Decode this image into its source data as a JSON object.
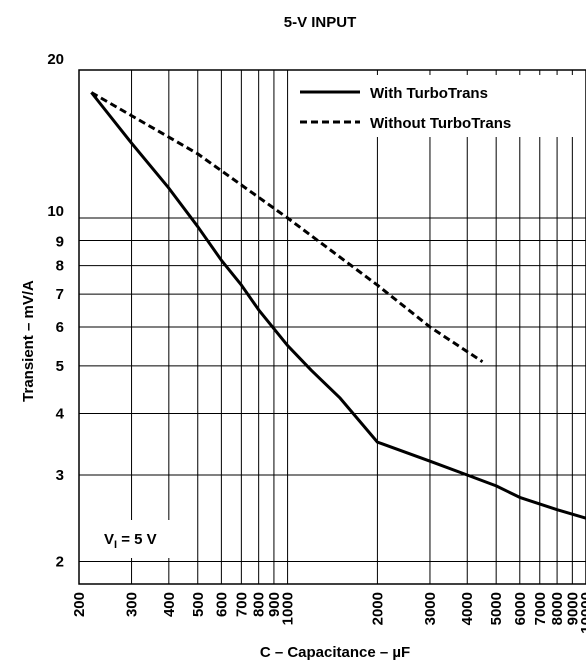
{
  "chart_data": {
    "type": "line",
    "title": "5-V INPUT",
    "xlabel": "C – Capacitance – µF",
    "ylabel": "Transient – mV/A",
    "x_scale": "log",
    "y_scale": "log",
    "xlim": [
      200,
      10000
    ],
    "ylim": [
      1.8,
      20
    ],
    "grid": true,
    "legend_position": "top-right",
    "x_ticks": [
      200,
      300,
      400,
      500,
      600,
      700,
      800,
      900,
      1000,
      2000,
      3000,
      4000,
      5000,
      6000,
      7000,
      8000,
      9000,
      10000
    ],
    "x_tick_labels": [
      "200",
      "300",
      "400",
      "500",
      "600",
      "700",
      "800",
      "900",
      "1000",
      "2000",
      "3000",
      "4000",
      "5000",
      "6000",
      "7000",
      "8000",
      "9000",
      "10000"
    ],
    "y_ticks": [
      2,
      3,
      4,
      5,
      6,
      7,
      8,
      9,
      10,
      20
    ],
    "y_tick_labels": [
      "2",
      "3",
      "4",
      "5",
      "6",
      "7",
      "8",
      "9",
      "10",
      "20"
    ],
    "annotation": {
      "prefix": "V",
      "subscript": "I",
      "suffix": " = 5 V"
    },
    "series": [
      {
        "name": "With TurboTrans",
        "style": "solid",
        "points": [
          [
            220,
            18.0
          ],
          [
            300,
            14.2
          ],
          [
            400,
            11.5
          ],
          [
            500,
            9.6
          ],
          [
            600,
            8.2
          ],
          [
            700,
            7.3
          ],
          [
            800,
            6.5
          ],
          [
            1000,
            5.5
          ],
          [
            1200,
            4.9
          ],
          [
            1500,
            4.3
          ],
          [
            2000,
            3.5
          ],
          [
            3000,
            3.2
          ],
          [
            4000,
            3.0
          ],
          [
            5000,
            2.85
          ],
          [
            6000,
            2.7
          ],
          [
            8000,
            2.55
          ],
          [
            10000,
            2.45
          ]
        ]
      },
      {
        "name": "Without TurboTrans",
        "style": "dashed",
        "points": [
          [
            220,
            18.0
          ],
          [
            500,
            13.5
          ],
          [
            1000,
            10.0
          ],
          [
            2000,
            7.3
          ],
          [
            3000,
            6.0
          ],
          [
            4500,
            5.1
          ]
        ]
      }
    ]
  }
}
